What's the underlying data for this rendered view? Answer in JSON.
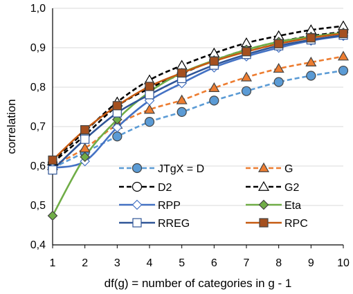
{
  "chart_data": {
    "type": "line",
    "title": "",
    "xlabel": "df(g) = number of categories in g - 1",
    "ylabel": "correlation",
    "x": [
      1,
      2,
      3,
      4,
      5,
      6,
      7,
      8,
      9,
      10
    ],
    "xlim": [
      1,
      10
    ],
    "ylim": [
      0.4,
      1.0
    ],
    "yticks": [
      "0,4",
      "0,5",
      "0,6",
      "0,7",
      "0,8",
      "0,9",
      "1,0"
    ],
    "xticks": [
      "1",
      "2",
      "3",
      "4",
      "5",
      "6",
      "7",
      "8",
      "9",
      "10"
    ],
    "grid": "horizontal",
    "legend_position": "inside-bottom",
    "series": [
      {
        "name": "JTgX = D",
        "color": "#5b9bd5",
        "dash": "dashed",
        "marker": "circle",
        "marker_fill": "#5b9bd5",
        "values": [
          0.595,
          0.635,
          0.675,
          0.712,
          0.737,
          0.766,
          0.79,
          0.813,
          0.829,
          0.842
        ]
      },
      {
        "name": "G",
        "color": "#ed7d31",
        "dash": "dashed",
        "marker": "triangle",
        "marker_fill": "#ed7d31",
        "values": [
          0.6,
          0.645,
          0.705,
          0.743,
          0.767,
          0.798,
          0.825,
          0.847,
          0.863,
          0.878
        ]
      },
      {
        "name": "D2",
        "color": "#000000",
        "dash": "dashed",
        "marker": "circle",
        "marker_fill": "#ffffff",
        "values": [
          0.608,
          0.678,
          0.752,
          0.797,
          0.834,
          0.868,
          0.895,
          0.915,
          0.93,
          0.94
        ]
      },
      {
        "name": "G2",
        "color": "#000000",
        "dash": "dashed",
        "marker": "triangle",
        "marker_fill": "#ffffff",
        "values": [
          0.612,
          0.688,
          0.762,
          0.818,
          0.855,
          0.886,
          0.912,
          0.93,
          0.945,
          0.955
        ]
      },
      {
        "name": "RPP",
        "color": "#4472c4",
        "dash": "solid",
        "marker": "diamond",
        "marker_fill": "#ffffff",
        "values": [
          0.595,
          0.612,
          0.698,
          0.766,
          0.81,
          0.85,
          0.878,
          0.9,
          0.918,
          0.93
        ]
      },
      {
        "name": "Eta",
        "color": "#70ad47",
        "dash": "solid",
        "marker": "diamond",
        "marker_fill": "#70ad47",
        "values": [
          0.474,
          0.623,
          0.718,
          0.788,
          0.836,
          0.868,
          0.895,
          0.915,
          0.928,
          0.938
        ]
      },
      {
        "name": "RREG",
        "color": "#2f5597",
        "dash": "solid",
        "marker": "square",
        "marker_fill": "#ffffff",
        "values": [
          0.59,
          0.668,
          0.735,
          0.781,
          0.822,
          0.856,
          0.883,
          0.905,
          0.92,
          0.932
        ]
      },
      {
        "name": "RPC",
        "color": "#c55a11",
        "dash": "solid",
        "marker": "square",
        "marker_fill": "#a5501f",
        "values": [
          0.615,
          0.692,
          0.753,
          0.802,
          0.836,
          0.866,
          0.89,
          0.91,
          0.925,
          0.936
        ]
      }
    ]
  }
}
